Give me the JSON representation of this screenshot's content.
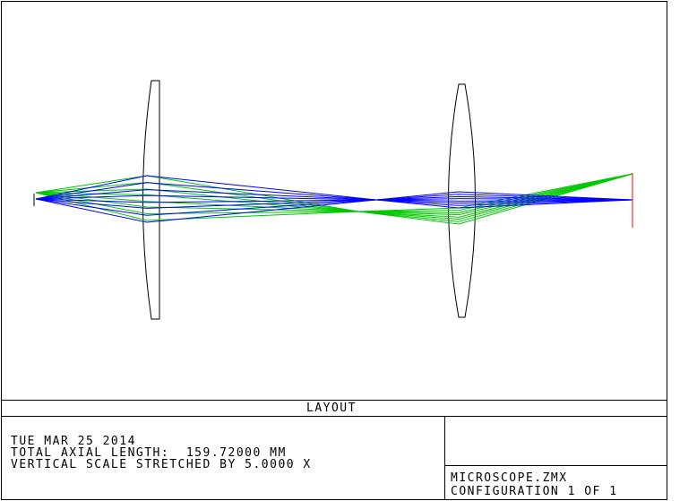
{
  "caption": {
    "title": "LAYOUT"
  },
  "info": {
    "date": "TUE MAR 25 2014",
    "axial_length": "TOTAL AXIAL LENGTH:  159.72000 MM",
    "vertical_scale": "VERTICAL SCALE STRETCHED BY 5.0000 X"
  },
  "file": {
    "name": "MICROSCOPE.ZMX",
    "configuration": "CONFIGURATION 1 OF 1"
  },
  "colors": {
    "field1": "#0000ff",
    "field2": "#00c800",
    "image": "#ff0000",
    "lens": "#000000"
  }
}
